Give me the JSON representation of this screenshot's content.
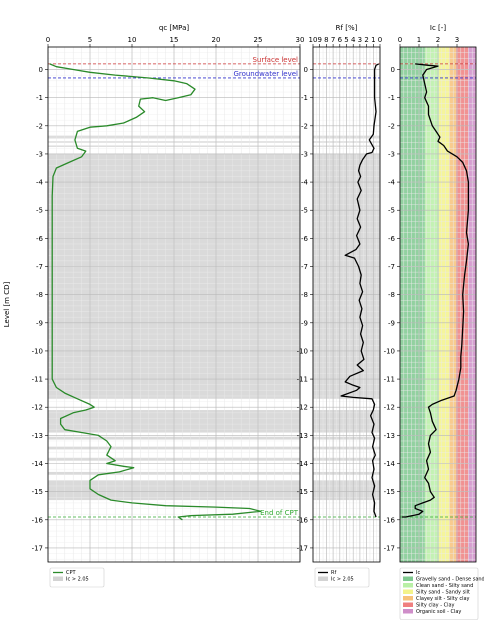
{
  "chart_data": [
    {
      "type": "line",
      "xlabel": "qc [MPa]",
      "ylabel": "Level [m CD]",
      "xlim": [
        0,
        30
      ],
      "ylim": [
        -17.5,
        0.8
      ],
      "x_ticks": [
        0,
        5,
        10,
        15,
        20,
        25,
        30
      ],
      "y_ticks": [
        0,
        -1,
        -2,
        -3,
        -4,
        -5,
        -6,
        -7,
        -8,
        -9,
        -10,
        -11,
        -12,
        -13,
        -14,
        -15,
        -16,
        -17
      ],
      "grid": true,
      "legend_position": "below",
      "annotations": [
        {
          "text": "Surface level",
          "level": 0.2,
          "color": "#cc3333"
        },
        {
          "text": "Groundwater level",
          "level": -0.3,
          "color": "#3333cc"
        },
        {
          "text": "End of CPT",
          "level": -15.9,
          "color": "#33aa33"
        }
      ],
      "series": [
        {
          "name": "CPT",
          "color": "#2a8a2a",
          "points": [
            [
              0.2,
              0.2
            ],
            [
              1,
              0.1
            ],
            [
              3,
              0.0
            ],
            [
              5,
              -0.1
            ],
            [
              8,
              -0.2
            ],
            [
              12,
              -0.3
            ],
            [
              15,
              -0.4
            ],
            [
              16.5,
              -0.5
            ],
            [
              17.5,
              -0.7
            ],
            [
              17,
              -0.9
            ],
            [
              15.5,
              -1.0
            ],
            [
              14,
              -1.1
            ],
            [
              12.5,
              -1.0
            ],
            [
              11,
              -1.05
            ],
            [
              10.8,
              -1.3
            ],
            [
              11.5,
              -1.5
            ],
            [
              10.5,
              -1.7
            ],
            [
              9,
              -1.9
            ],
            [
              7,
              -2.0
            ],
            [
              5,
              -2.05
            ],
            [
              3.5,
              -2.2
            ],
            [
              3.2,
              -2.5
            ],
            [
              3.5,
              -2.8
            ],
            [
              4.5,
              -2.9
            ],
            [
              4,
              -3.1
            ],
            [
              2.5,
              -3.3
            ],
            [
              1,
              -3.5
            ],
            [
              0.6,
              -3.8
            ],
            [
              0.5,
              -4.5
            ],
            [
              0.5,
              -6
            ],
            [
              0.5,
              -8
            ],
            [
              0.5,
              -10
            ],
            [
              0.5,
              -11
            ],
            [
              1,
              -11.3
            ],
            [
              2,
              -11.5
            ],
            [
              3.5,
              -11.7
            ],
            [
              5,
              -11.9
            ],
            [
              5.5,
              -12.0
            ],
            [
              4.5,
              -12.1
            ],
            [
              3,
              -12.2
            ],
            [
              1.5,
              -12.4
            ],
            [
              1.5,
              -12.6
            ],
            [
              2,
              -12.8
            ],
            [
              4,
              -12.9
            ],
            [
              6,
              -13.0
            ],
            [
              7,
              -13.2
            ],
            [
              7.5,
              -13.4
            ],
            [
              7,
              -13.7
            ],
            [
              8,
              -13.9
            ],
            [
              7,
              -14.0
            ],
            [
              9,
              -14.1
            ],
            [
              10.2,
              -14.15
            ],
            [
              8.5,
              -14.3
            ],
            [
              6,
              -14.4
            ],
            [
              5,
              -14.6
            ],
            [
              5,
              -14.9
            ],
            [
              6,
              -15.1
            ],
            [
              7.5,
              -15.3
            ],
            [
              10,
              -15.4
            ],
            [
              14,
              -15.5
            ],
            [
              20,
              -15.55
            ],
            [
              24,
              -15.6
            ],
            [
              25.3,
              -15.7
            ],
            [
              22,
              -15.8
            ],
            [
              17,
              -15.85
            ],
            [
              15.5,
              -15.9
            ],
            [
              16,
              -16.0
            ]
          ]
        }
      ],
      "shaded_intervals_label": "Ic > 2.05",
      "shaded_intervals_color": "#d3d3d3",
      "shaded_intervals": [
        [
          -2.35,
          -2.45
        ],
        [
          -2.55,
          -2.6
        ],
        [
          -2.7,
          -2.75
        ],
        [
          -3.0,
          -11.7
        ],
        [
          -12.1,
          -12.9
        ],
        [
          -13.05,
          -13.15
        ],
        [
          -13.4,
          -13.5
        ],
        [
          -13.8,
          -13.9
        ],
        [
          -14.3,
          -14.4
        ],
        [
          -14.6,
          -15.3
        ]
      ]
    },
    {
      "type": "line",
      "xlabel": "Rf [%]",
      "xlim": [
        10,
        0
      ],
      "ylim": [
        -17.5,
        0.8
      ],
      "x_ticks": [
        10,
        9,
        8,
        7,
        6,
        5,
        4,
        3,
        2,
        1,
        0
      ],
      "y_ticks": [
        0,
        -1,
        -2,
        -3,
        -4,
        -5,
        -6,
        -7,
        -8,
        -9,
        -10,
        -11,
        -12,
        -13,
        -14,
        -15,
        -16,
        -17
      ],
      "grid": true,
      "legend_position": "below",
      "series": [
        {
          "name": "Rf",
          "color": "#000000",
          "points": [
            [
              0.2,
              0.2
            ],
            [
              0.6,
              0.15
            ],
            [
              0.8,
              0.0
            ],
            [
              0.8,
              -0.5
            ],
            [
              0.8,
              -1.0
            ],
            [
              0.6,
              -1.5
            ],
            [
              0.9,
              -2.0
            ],
            [
              1.0,
              -2.3
            ],
            [
              1.6,
              -2.5
            ],
            [
              0.9,
              -2.8
            ],
            [
              1.2,
              -2.95
            ],
            [
              2.0,
              -3.0
            ],
            [
              2.6,
              -3.2
            ],
            [
              3.0,
              -3.4
            ],
            [
              3.2,
              -3.6
            ],
            [
              2.9,
              -3.8
            ],
            [
              3.3,
              -4.0
            ],
            [
              2.8,
              -4.3
            ],
            [
              3.4,
              -4.6
            ],
            [
              3.0,
              -5.0
            ],
            [
              3.4,
              -5.3
            ],
            [
              2.9,
              -5.6
            ],
            [
              3.5,
              -5.9
            ],
            [
              3.0,
              -6.2
            ],
            [
              3.6,
              -6.4
            ],
            [
              5.2,
              -6.6
            ],
            [
              3.8,
              -6.7
            ],
            [
              3.2,
              -7.0
            ],
            [
              2.8,
              -7.3
            ],
            [
              3.0,
              -7.6
            ],
            [
              2.6,
              -7.9
            ],
            [
              3.1,
              -8.2
            ],
            [
              2.7,
              -8.5
            ],
            [
              3.0,
              -8.8
            ],
            [
              2.6,
              -9.1
            ],
            [
              2.9,
              -9.4
            ],
            [
              2.5,
              -9.7
            ],
            [
              2.8,
              -10.0
            ],
            [
              2.4,
              -10.3
            ],
            [
              3.4,
              -10.5
            ],
            [
              2.5,
              -10.7
            ],
            [
              4.5,
              -10.9
            ],
            [
              5.2,
              -11.1
            ],
            [
              4.2,
              -11.2
            ],
            [
              3.0,
              -11.3
            ],
            [
              3.5,
              -11.4
            ],
            [
              5.8,
              -11.6
            ],
            [
              4.0,
              -11.65
            ],
            [
              1.2,
              -11.7
            ],
            [
              0.8,
              -11.9
            ],
            [
              1.0,
              -12.1
            ],
            [
              1.4,
              -12.3
            ],
            [
              0.9,
              -12.6
            ],
            [
              1.2,
              -12.9
            ],
            [
              0.8,
              -13.1
            ],
            [
              1.1,
              -13.4
            ],
            [
              0.7,
              -13.7
            ],
            [
              1.1,
              -13.9
            ],
            [
              0.9,
              -14.2
            ],
            [
              1.2,
              -14.5
            ],
            [
              0.8,
              -14.8
            ],
            [
              1.1,
              -15.1
            ],
            [
              0.8,
              -15.4
            ],
            [
              0.9,
              -15.7
            ],
            [
              0.6,
              -15.9
            ]
          ]
        }
      ],
      "shaded_intervals_label": "Ic > 2.05",
      "shaded_intervals_color": "#d3d3d3",
      "shaded_intervals": [
        [
          -2.35,
          -2.45
        ],
        [
          -2.55,
          -2.6
        ],
        [
          -2.7,
          -2.75
        ],
        [
          -3.0,
          -11.7
        ],
        [
          -12.1,
          -12.9
        ],
        [
          -13.05,
          -13.15
        ],
        [
          -13.4,
          -13.5
        ],
        [
          -13.8,
          -13.9
        ],
        [
          -14.3,
          -14.4
        ],
        [
          -14.6,
          -15.3
        ]
      ]
    },
    {
      "type": "line",
      "xlabel": "Ic [-]",
      "xlim": [
        0,
        4
      ],
      "ylim": [
        -17.5,
        0.8
      ],
      "x_ticks": [
        0,
        1,
        2,
        3
      ],
      "y_ticks": [
        0,
        -1,
        -2,
        -3,
        -4,
        -5,
        -6,
        -7,
        -8,
        -9,
        -10,
        -11,
        -12,
        -13,
        -14,
        -15,
        -16,
        -17
      ],
      "grid": true,
      "legend_position": "below",
      "zones": [
        {
          "label": "Gravelly sand - Dense sand",
          "from": 0,
          "to": 1.31,
          "color": "#7fc98f"
        },
        {
          "label": "Clean sand - Silty sand",
          "from": 1.31,
          "to": 2.05,
          "color": "#b9f0a6"
        },
        {
          "label": "Silty sand - Sandy silt",
          "from": 2.05,
          "to": 2.6,
          "color": "#f3f38a"
        },
        {
          "label": "Clayey silt - Silty clay",
          "from": 2.6,
          "to": 2.95,
          "color": "#f7c27a"
        },
        {
          "label": "Silty clay - Clay",
          "from": 2.95,
          "to": 3.6,
          "color": "#ef7f7f"
        },
        {
          "label": "Organic soil - Clay",
          "from": 3.6,
          "to": 4.0,
          "color": "#cf8ec9"
        }
      ],
      "series": [
        {
          "name": "Ic",
          "color": "#000000",
          "points": [
            [
              0.8,
              0.2
            ],
            [
              1.5,
              0.15
            ],
            [
              2.0,
              0.12
            ],
            [
              1.4,
              0.0
            ],
            [
              1.2,
              -0.2
            ],
            [
              1.3,
              -0.5
            ],
            [
              1.4,
              -0.8
            ],
            [
              1.3,
              -1.0
            ],
            [
              1.5,
              -1.3
            ],
            [
              1.5,
              -1.6
            ],
            [
              1.6,
              -1.8
            ],
            [
              1.7,
              -2.0
            ],
            [
              1.9,
              -2.2
            ],
            [
              2.1,
              -2.4
            ],
            [
              2.0,
              -2.55
            ],
            [
              2.3,
              -2.7
            ],
            [
              2.5,
              -2.9
            ],
            [
              3.0,
              -3.1
            ],
            [
              3.3,
              -3.3
            ],
            [
              3.5,
              -3.6
            ],
            [
              3.6,
              -4.0
            ],
            [
              3.6,
              -5.0
            ],
            [
              3.5,
              -5.8
            ],
            [
              3.6,
              -6.2
            ],
            [
              3.5,
              -6.8
            ],
            [
              3.4,
              -7.3
            ],
            [
              3.3,
              -8.0
            ],
            [
              3.35,
              -8.6
            ],
            [
              3.3,
              -9.2
            ],
            [
              3.25,
              -9.8
            ],
            [
              3.2,
              -10.2
            ],
            [
              3.2,
              -10.6
            ],
            [
              3.1,
              -11.0
            ],
            [
              2.95,
              -11.4
            ],
            [
              2.85,
              -11.6
            ],
            [
              2.2,
              -11.75
            ],
            [
              1.7,
              -11.9
            ],
            [
              1.5,
              -12.0
            ],
            [
              1.6,
              -12.2
            ],
            [
              1.7,
              -12.5
            ],
            [
              1.9,
              -12.8
            ],
            [
              1.6,
              -13.0
            ],
            [
              1.5,
              -13.3
            ],
            [
              1.6,
              -13.6
            ],
            [
              1.4,
              -13.9
            ],
            [
              1.5,
              -14.2
            ],
            [
              1.3,
              -14.5
            ],
            [
              1.5,
              -14.7
            ],
            [
              1.6,
              -15.0
            ],
            [
              1.8,
              -15.2
            ],
            [
              1.6,
              -15.3
            ],
            [
              1.2,
              -15.4
            ],
            [
              0.8,
              -15.5
            ],
            [
              0.8,
              -15.6
            ],
            [
              1.2,
              -15.7
            ],
            [
              1.0,
              -15.8
            ],
            [
              0.3,
              -15.9
            ],
            [
              0.1,
              -15.9
            ]
          ]
        }
      ]
    }
  ],
  "legends": {
    "panel1": [
      {
        "label": "CPT",
        "kind": "line",
        "color": "#2a8a2a"
      },
      {
        "label": "Ic > 2.05",
        "kind": "patch",
        "color": "#d3d3d3"
      }
    ],
    "panel2": [
      {
        "label": "Rf",
        "kind": "line",
        "color": "#000000"
      },
      {
        "label": "Ic > 2.05",
        "kind": "patch",
        "color": "#d3d3d3"
      }
    ],
    "panel3": [
      {
        "label": "Ic",
        "kind": "line",
        "color": "#000000"
      },
      {
        "label": "Gravelly sand - Dense sand",
        "kind": "patch",
        "color": "#7fc98f"
      },
      {
        "label": "Clean sand - Silty sand",
        "kind": "patch",
        "color": "#b9f0a6"
      },
      {
        "label": "Silty sand - Sandy silt",
        "kind": "patch",
        "color": "#f3f38a"
      },
      {
        "label": "Clayey silt - Silty clay",
        "kind": "patch",
        "color": "#f7c27a"
      },
      {
        "label": "Silty clay - Clay",
        "kind": "patch",
        "color": "#ef7f7f"
      },
      {
        "label": "Organic soil - Clay",
        "kind": "patch",
        "color": "#cf8ec9"
      }
    ]
  }
}
